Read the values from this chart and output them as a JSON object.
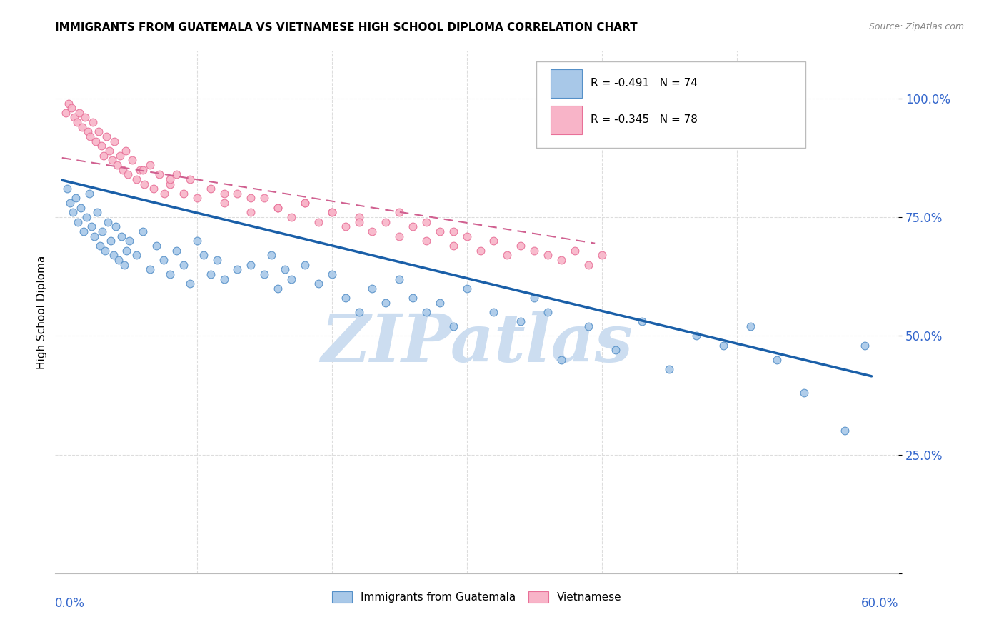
{
  "title": "IMMIGRANTS FROM GUATEMALA VS VIETNAMESE HIGH SCHOOL DIPLOMA CORRELATION CHART",
  "source": "Source: ZipAtlas.com",
  "ylabel": "High School Diploma",
  "yticks": [
    0.0,
    0.25,
    0.5,
    0.75,
    1.0
  ],
  "ytick_labels": [
    "",
    "25.0%",
    "50.0%",
    "75.0%",
    "100.0%"
  ],
  "blue_scatter_x": [
    0.004,
    0.006,
    0.008,
    0.01,
    0.012,
    0.014,
    0.016,
    0.018,
    0.02,
    0.022,
    0.024,
    0.026,
    0.028,
    0.03,
    0.032,
    0.034,
    0.036,
    0.038,
    0.04,
    0.042,
    0.044,
    0.046,
    0.048,
    0.05,
    0.055,
    0.06,
    0.065,
    0.07,
    0.075,
    0.08,
    0.085,
    0.09,
    0.095,
    0.1,
    0.105,
    0.11,
    0.115,
    0.12,
    0.13,
    0.14,
    0.15,
    0.155,
    0.16,
    0.165,
    0.17,
    0.18,
    0.19,
    0.2,
    0.21,
    0.22,
    0.23,
    0.24,
    0.25,
    0.26,
    0.27,
    0.28,
    0.29,
    0.3,
    0.32,
    0.34,
    0.35,
    0.36,
    0.37,
    0.39,
    0.41,
    0.43,
    0.45,
    0.47,
    0.49,
    0.51,
    0.53,
    0.55,
    0.58,
    0.595
  ],
  "blue_scatter_y": [
    0.81,
    0.78,
    0.76,
    0.79,
    0.74,
    0.77,
    0.72,
    0.75,
    0.8,
    0.73,
    0.71,
    0.76,
    0.69,
    0.72,
    0.68,
    0.74,
    0.7,
    0.67,
    0.73,
    0.66,
    0.71,
    0.65,
    0.68,
    0.7,
    0.67,
    0.72,
    0.64,
    0.69,
    0.66,
    0.63,
    0.68,
    0.65,
    0.61,
    0.7,
    0.67,
    0.63,
    0.66,
    0.62,
    0.64,
    0.65,
    0.63,
    0.67,
    0.6,
    0.64,
    0.62,
    0.65,
    0.61,
    0.63,
    0.58,
    0.55,
    0.6,
    0.57,
    0.62,
    0.58,
    0.55,
    0.57,
    0.52,
    0.6,
    0.55,
    0.53,
    0.58,
    0.55,
    0.45,
    0.52,
    0.47,
    0.53,
    0.43,
    0.5,
    0.48,
    0.52,
    0.45,
    0.38,
    0.3,
    0.48
  ],
  "pink_scatter_x": [
    0.003,
    0.005,
    0.007,
    0.009,
    0.011,
    0.013,
    0.015,
    0.017,
    0.019,
    0.021,
    0.023,
    0.025,
    0.027,
    0.029,
    0.031,
    0.033,
    0.035,
    0.037,
    0.039,
    0.041,
    0.043,
    0.045,
    0.047,
    0.049,
    0.052,
    0.055,
    0.058,
    0.061,
    0.065,
    0.068,
    0.072,
    0.076,
    0.08,
    0.085,
    0.09,
    0.095,
    0.1,
    0.11,
    0.12,
    0.13,
    0.14,
    0.15,
    0.16,
    0.17,
    0.18,
    0.19,
    0.2,
    0.21,
    0.22,
    0.23,
    0.24,
    0.25,
    0.26,
    0.27,
    0.28,
    0.29,
    0.3,
    0.31,
    0.32,
    0.33,
    0.34,
    0.35,
    0.36,
    0.37,
    0.38,
    0.39,
    0.4,
    0.25,
    0.27,
    0.29,
    0.18,
    0.2,
    0.22,
    0.12,
    0.14,
    0.16,
    0.06,
    0.08
  ],
  "pink_scatter_y": [
    0.97,
    0.99,
    0.98,
    0.96,
    0.95,
    0.97,
    0.94,
    0.96,
    0.93,
    0.92,
    0.95,
    0.91,
    0.93,
    0.9,
    0.88,
    0.92,
    0.89,
    0.87,
    0.91,
    0.86,
    0.88,
    0.85,
    0.89,
    0.84,
    0.87,
    0.83,
    0.85,
    0.82,
    0.86,
    0.81,
    0.84,
    0.8,
    0.82,
    0.84,
    0.8,
    0.83,
    0.79,
    0.81,
    0.78,
    0.8,
    0.76,
    0.79,
    0.77,
    0.75,
    0.78,
    0.74,
    0.76,
    0.73,
    0.75,
    0.72,
    0.74,
    0.71,
    0.73,
    0.7,
    0.72,
    0.69,
    0.71,
    0.68,
    0.7,
    0.67,
    0.69,
    0.68,
    0.67,
    0.66,
    0.68,
    0.65,
    0.67,
    0.76,
    0.74,
    0.72,
    0.78,
    0.76,
    0.74,
    0.8,
    0.79,
    0.77,
    0.85,
    0.83
  ],
  "blue_line_x": [
    0.0,
    0.6
  ],
  "blue_line_y": [
    0.828,
    0.415
  ],
  "pink_line_x": [
    0.0,
    0.395
  ],
  "pink_line_y": [
    0.875,
    0.695
  ],
  "xlim": [
    -0.005,
    0.62
  ],
  "ylim": [
    0.1,
    1.1
  ],
  "background_color": "#ffffff",
  "scatter_blue_face": "#a8c8e8",
  "scatter_blue_edge": "#5590c8",
  "scatter_pink_face": "#f8b4c8",
  "scatter_pink_edge": "#e87098",
  "line_blue_color": "#1a5fa8",
  "line_pink_color": "#d06090",
  "watermark_text": "ZIPatlas",
  "watermark_color": "#ccddf0",
  "axis_label_color": "#3366cc",
  "grid_color": "#dddddd"
}
